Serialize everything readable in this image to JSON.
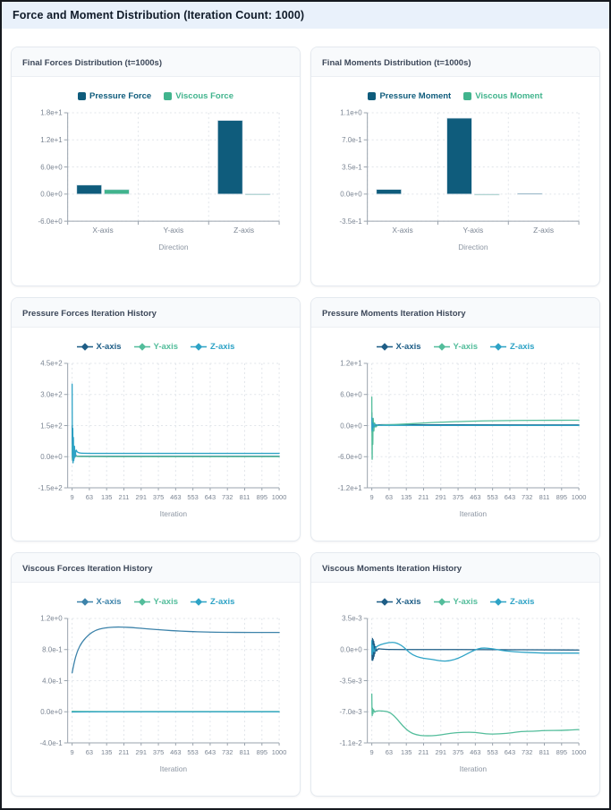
{
  "page": {
    "title": "Force and Moment Distribution (Iteration Count: 1000)"
  },
  "theme": {
    "header_bg": "#e9f1fb",
    "header_text": "#101b29",
    "card_border": "#e4e9ef",
    "card_header_bg": "#f8fafc",
    "grid_line": "#e1e5ea",
    "axis_line": "#9aa3ad",
    "tick_text": "#7b8593",
    "xlabel_text": "#8d96a3",
    "pressure_color": "#0f5c7c",
    "viscous_color": "#41b48d",
    "x_series_color": "#1d5d86",
    "y_series_color": "#53bd9b",
    "z_series_color": "#2ea3c6"
  },
  "chart_data": [
    {
      "title": "Final Forces Distribution (t=1000s)",
      "type": "bar",
      "xlabel": "Direction",
      "categories": [
        "X-axis",
        "Y-axis",
        "Z-axis"
      ],
      "ytick_values": [
        -6,
        0,
        6,
        12,
        18
      ],
      "ytick_labels": [
        "-6.0e+0",
        "0.0e+0",
        "6.0e+0",
        "1.2e+1",
        "1.8e+1"
      ],
      "series": [
        {
          "name": "Pressure Force",
          "color": "#0f5c7c",
          "values": [
            2.0,
            0.0,
            16.3
          ]
        },
        {
          "name": "Viscous Force",
          "color": "#41b48d",
          "values": [
            1.0,
            0.0,
            0.05
          ]
        }
      ]
    },
    {
      "title": "Final Moments Distribution (t=1000s)",
      "type": "bar",
      "xlabel": "Direction",
      "categories": [
        "X-axis",
        "Y-axis",
        "Z-axis"
      ],
      "ytick_values": [
        -0.35,
        0,
        0.35,
        0.7,
        1.05
      ],
      "ytick_labels": [
        "-3.5e-1",
        "0.0e+0",
        "3.5e-1",
        "7.0e-1",
        "1.1e+0"
      ],
      "series": [
        {
          "name": "Pressure Moment",
          "color": "#0f5c7c",
          "values": [
            0.06,
            0.98,
            0.008
          ]
        },
        {
          "name": "Viscous Moment",
          "color": "#41b48d",
          "values": [
            0.0,
            -0.007,
            0.0
          ]
        }
      ]
    },
    {
      "title": "Pressure Forces Iteration History",
      "type": "line",
      "xlabel": "Iteration",
      "xticks": [
        9,
        63,
        135,
        211,
        291,
        375,
        463,
        553,
        643,
        732,
        811,
        895,
        1000
      ],
      "ytick_values": [
        -150,
        0,
        150,
        300,
        450
      ],
      "ytick_labels": [
        "-1.5e+2",
        "0.0e+0",
        "1.5e+2",
        "3.0e+2",
        "4.5e+2"
      ],
      "series": [
        {
          "name": "X-axis",
          "color": "#1d5d86",
          "points": [
            [
              9,
              150
            ],
            [
              10,
              -90
            ],
            [
              11,
              120
            ],
            [
              12,
              -60
            ],
            [
              13,
              80
            ],
            [
              15,
              -30
            ],
            [
              17,
              40
            ],
            [
              20,
              5
            ],
            [
              25,
              2
            ],
            [
              63,
              2
            ],
            [
              291,
              2
            ],
            [
              643,
              2
            ],
            [
              1000,
              2
            ]
          ]
        },
        {
          "name": "Y-axis",
          "color": "#53bd9b",
          "points": [
            [
              9,
              60
            ],
            [
              10,
              -40
            ],
            [
              11,
              30
            ],
            [
              13,
              -15
            ],
            [
              15,
              8
            ],
            [
              20,
              0.5
            ],
            [
              63,
              0.3
            ],
            [
              500,
              0.3
            ],
            [
              1000,
              0.3
            ]
          ]
        },
        {
          "name": "Z-axis",
          "color": "#2ea3c6",
          "points": [
            [
              9,
              350
            ],
            [
              10,
              -130
            ],
            [
              11,
              220
            ],
            [
              12,
              -100
            ],
            [
              13,
              150
            ],
            [
              14,
              -60
            ],
            [
              16,
              80
            ],
            [
              18,
              -20
            ],
            [
              21,
              40
            ],
            [
              25,
              17
            ],
            [
              63,
              16
            ],
            [
              291,
              16
            ],
            [
              643,
              16
            ],
            [
              1000,
              16
            ]
          ]
        }
      ]
    },
    {
      "title": "Pressure Moments Iteration History",
      "type": "line",
      "xlabel": "Iteration",
      "xticks": [
        9,
        63,
        135,
        211,
        291,
        375,
        463,
        553,
        643,
        732,
        811,
        895,
        1000
      ],
      "ytick_values": [
        -12,
        -6,
        0,
        6,
        12
      ],
      "ytick_labels": [
        "-1.2e+1",
        "-6.0e+0",
        "0.0e+0",
        "6.0e+0",
        "1.2e+1"
      ],
      "series": [
        {
          "name": "X-axis",
          "color": "#1d5d86",
          "points": [
            [
              9,
              2.5
            ],
            [
              10,
              -3
            ],
            [
              11,
              1.8
            ],
            [
              13,
              -1.2
            ],
            [
              15,
              0.8
            ],
            [
              18,
              -0.3
            ],
            [
              22,
              0.2
            ],
            [
              63,
              0.15
            ],
            [
              500,
              0.13
            ],
            [
              1000,
              0.12
            ]
          ]
        },
        {
          "name": "Y-axis",
          "color": "#53bd9b",
          "points": [
            [
              9,
              5.5
            ],
            [
              10,
              -12
            ],
            [
              11,
              4
            ],
            [
              12,
              -6
            ],
            [
              13,
              3
            ],
            [
              15,
              -2
            ],
            [
              17,
              1
            ],
            [
              20,
              -0.5
            ],
            [
              25,
              0.1
            ],
            [
              63,
              0.15
            ],
            [
              135,
              0.3
            ],
            [
              211,
              0.5
            ],
            [
              291,
              0.65
            ],
            [
              375,
              0.78
            ],
            [
              463,
              0.87
            ],
            [
              553,
              0.93
            ],
            [
              643,
              0.97
            ],
            [
              732,
              1.0
            ],
            [
              811,
              1.02
            ],
            [
              895,
              1.03
            ],
            [
              1000,
              1.04
            ]
          ]
        },
        {
          "name": "Z-axis",
          "color": "#2ea3c6",
          "points": [
            [
              9,
              1.5
            ],
            [
              10,
              -2
            ],
            [
              12,
              1
            ],
            [
              15,
              -0.6
            ],
            [
              19,
              0.3
            ],
            [
              25,
              0.05
            ],
            [
              63,
              0.02
            ],
            [
              500,
              0.02
            ],
            [
              1000,
              0.02
            ]
          ]
        }
      ]
    },
    {
      "title": "Viscous Forces Iteration History",
      "type": "line",
      "xlabel": "Iteration",
      "xticks": [
        9,
        63,
        135,
        211,
        291,
        375,
        463,
        553,
        643,
        732,
        811,
        895,
        1000
      ],
      "ytick_values": [
        -0.4,
        0,
        0.4,
        0.8,
        1.2
      ],
      "ytick_labels": [
        "-4.0e-1",
        "0.0e+0",
        "4.0e-1",
        "8.0e-1",
        "1.2e+0"
      ],
      "series": [
        {
          "name": "X-axis",
          "color": "#3d83aa",
          "points": [
            [
              9,
              0.5
            ],
            [
              15,
              0.63
            ],
            [
              25,
              0.78
            ],
            [
              40,
              0.9
            ],
            [
              63,
              1.0
            ],
            [
              90,
              1.05
            ],
            [
              120,
              1.075
            ],
            [
              150,
              1.085
            ],
            [
              180,
              1.09
            ],
            [
              211,
              1.088
            ],
            [
              250,
              1.082
            ],
            [
              291,
              1.072
            ],
            [
              340,
              1.062
            ],
            [
              375,
              1.055
            ],
            [
              420,
              1.047
            ],
            [
              463,
              1.04
            ],
            [
              520,
              1.034
            ],
            [
              553,
              1.03
            ],
            [
              600,
              1.027
            ],
            [
              643,
              1.024
            ],
            [
              700,
              1.022
            ],
            [
              732,
              1.021
            ],
            [
              811,
              1.02
            ],
            [
              895,
              1.02
            ],
            [
              1000,
              1.02
            ]
          ]
        },
        {
          "name": "Y-axis",
          "color": "#53bd9b",
          "points": [
            [
              9,
              0.005
            ],
            [
              63,
              0.002
            ],
            [
              500,
              0.002
            ],
            [
              1000,
              0.002
            ]
          ]
        },
        {
          "name": "Z-axis",
          "color": "#2ea3c6",
          "points": [
            [
              9,
              -0.003
            ],
            [
              63,
              0.0
            ],
            [
              500,
              0.0
            ],
            [
              1000,
              0.0
            ]
          ]
        }
      ]
    },
    {
      "title": "Viscous Moments Iteration History",
      "type": "line",
      "xlabel": "Iteration",
      "xticks": [
        9,
        63,
        135,
        211,
        291,
        375,
        463,
        553,
        643,
        732,
        811,
        895,
        1000
      ],
      "ytick_values": [
        -0.0105,
        -0.007,
        -0.0035,
        0,
        0.0035
      ],
      "ytick_labels": [
        "-1.1e-2",
        "-7.0e-3",
        "-3.5e-3",
        "0.0e+0",
        "3.5e-3"
      ],
      "series": [
        {
          "name": "X-axis",
          "color": "#1d5d86",
          "points": [
            [
              9,
              0.0008
            ],
            [
              10,
              -0.0027
            ],
            [
              11,
              0.0025
            ],
            [
              12,
              -0.0024
            ],
            [
              13,
              0.0022
            ],
            [
              14,
              -0.002
            ],
            [
              15,
              0.0018
            ],
            [
              16,
              -0.0015
            ],
            [
              17,
              0.0012
            ],
            [
              18,
              -0.0009
            ],
            [
              20,
              0.0006
            ],
            [
              23,
              -0.0003
            ],
            [
              27,
              0.0001
            ],
            [
              40,
              5e-05
            ],
            [
              63,
              0.0
            ],
            [
              500,
              0.0
            ],
            [
              1000,
              -5e-05
            ]
          ]
        },
        {
          "name": "Y-axis",
          "color": "#53bd9b",
          "points": [
            [
              9,
              -0.005
            ],
            [
              10,
              -0.0082
            ],
            [
              11,
              -0.0062
            ],
            [
              12,
              -0.0075
            ],
            [
              14,
              -0.0066
            ],
            [
              17,
              -0.0071
            ],
            [
              22,
              -0.0069
            ],
            [
              40,
              -0.0069
            ],
            [
              63,
              -0.007
            ],
            [
              90,
              -0.0076
            ],
            [
              120,
              -0.0086
            ],
            [
              150,
              -0.0093
            ],
            [
              180,
              -0.0096
            ],
            [
              211,
              -0.0097
            ],
            [
              250,
              -0.0097
            ],
            [
              291,
              -0.0096
            ],
            [
              340,
              -0.0094
            ],
            [
              400,
              -0.0093
            ],
            [
              463,
              -0.0093
            ],
            [
              520,
              -0.0095
            ],
            [
              570,
              -0.0095
            ],
            [
              643,
              -0.0094
            ],
            [
              700,
              -0.0092
            ],
            [
              760,
              -0.0092
            ],
            [
              811,
              -0.0091
            ],
            [
              895,
              -0.0091
            ],
            [
              1000,
              -0.009
            ]
          ]
        },
        {
          "name": "Z-axis",
          "color": "#2ea3c6",
          "points": [
            [
              9,
              0.001
            ],
            [
              10,
              -0.0013
            ],
            [
              12,
              0.0009
            ],
            [
              15,
              -0.0005
            ],
            [
              20,
              0.0003
            ],
            [
              40,
              0.0006
            ],
            [
              63,
              0.0008
            ],
            [
              90,
              0.0008
            ],
            [
              120,
              0.0004
            ],
            [
              150,
              -0.0004
            ],
            [
              180,
              -0.0008
            ],
            [
              211,
              -0.001
            ],
            [
              250,
              -0.0011
            ],
            [
              291,
              -0.0013
            ],
            [
              330,
              -0.0013
            ],
            [
              375,
              -0.001
            ],
            [
              420,
              -0.0005
            ],
            [
              463,
              0.0
            ],
            [
              500,
              0.0002
            ],
            [
              553,
              0.0001
            ],
            [
              600,
              -0.0001
            ],
            [
              643,
              -0.0002
            ],
            [
              700,
              -0.0003
            ],
            [
              760,
              -0.00035
            ],
            [
              811,
              -0.0004
            ],
            [
              895,
              -0.0004
            ],
            [
              1000,
              -0.0004
            ]
          ]
        }
      ]
    }
  ]
}
